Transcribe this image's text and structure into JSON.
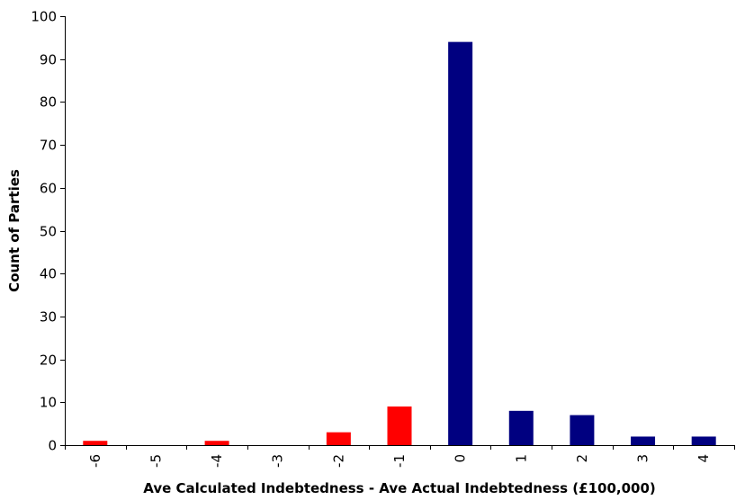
{
  "chart_data": {
    "type": "bar",
    "xlabel": "Ave Calculated Indebtedness - Ave Actual Indebtedness (£100,000)",
    "ylabel": "Count of Parties",
    "categories": [
      "-6",
      "-5",
      "-4",
      "-3",
      "-2",
      "-1",
      "0",
      "1",
      "2",
      "3",
      "4"
    ],
    "values": [
      1,
      0,
      1,
      0,
      3,
      9,
      94,
      8,
      7,
      2,
      2
    ],
    "bar_colors": [
      "#ff0000",
      "#ff0000",
      "#ff0000",
      "#ff0000",
      "#ff0000",
      "#ff0000",
      "#000080",
      "#000080",
      "#000080",
      "#000080",
      "#000080"
    ],
    "ylim": [
      0,
      100
    ],
    "yticks": [
      0,
      10,
      20,
      30,
      40,
      50,
      60,
      70,
      80,
      90,
      100
    ],
    "grid": false,
    "legend": "none"
  }
}
